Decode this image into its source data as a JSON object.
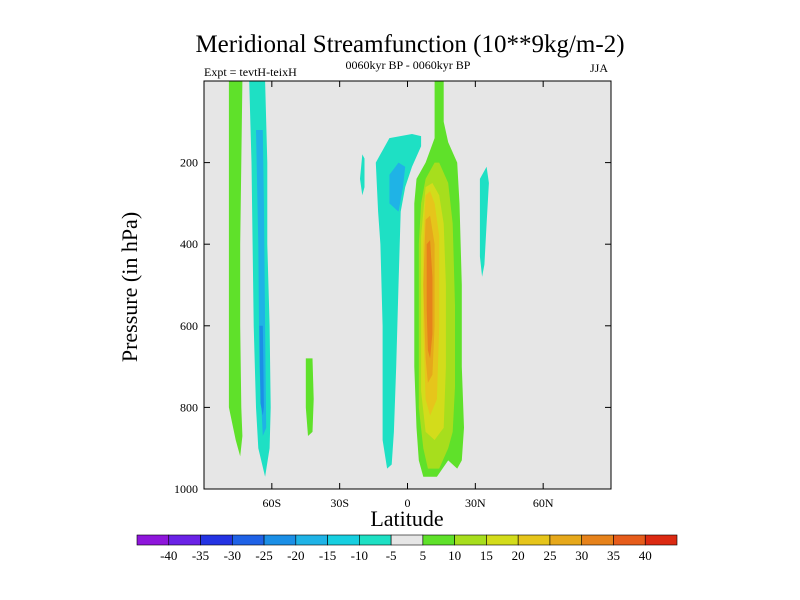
{
  "chart_data": {
    "type": "heatmap",
    "title": "Meridional Streamfunction (10**9kg/m-2)",
    "subtitle_left": "Expt = tevtH-teixH",
    "subtitle_center": "0060kyr BP - 0060kyr BP",
    "subtitle_right": "JJA",
    "xlabel": "Latitude",
    "ylabel": "Pressure (in hPa)",
    "xlim": [
      -90,
      90
    ],
    "ylim": [
      1000,
      0
    ],
    "x_ticks": [
      {
        "value": -60,
        "label": "60S"
      },
      {
        "value": -30,
        "label": "30S"
      },
      {
        "value": 0,
        "label": "0"
      },
      {
        "value": 30,
        "label": "30N"
      },
      {
        "value": 60,
        "label": "60N"
      }
    ],
    "y_ticks": [
      {
        "value": 200,
        "label": "200"
      },
      {
        "value": 400,
        "label": "400"
      },
      {
        "value": 600,
        "label": "600"
      },
      {
        "value": 800,
        "label": "800"
      },
      {
        "value": 1000,
        "label": "1000"
      }
    ],
    "background_color": "#e6e6e6",
    "colorbar": {
      "labels": [
        "-40",
        "-35",
        "-30",
        "-25",
        "-20",
        "-15",
        "-10",
        "-5",
        "5",
        "10",
        "15",
        "20",
        "25",
        "30",
        "35",
        "40"
      ],
      "colors": [
        "#8e16db",
        "#6a22e6",
        "#2433e3",
        "#1f62e6",
        "#1b8fe6",
        "#1fb3e6",
        "#17cfe0",
        "#1ee0c4",
        "#e6e6e6",
        "#5fe12a",
        "#a7de1d",
        "#d3dc1b",
        "#e6c51b",
        "#e6a81b",
        "#e6821b",
        "#e65c1b",
        "#dc2a12"
      ]
    },
    "regions": [
      {
        "name": "sh-positive-column",
        "value": 5,
        "color": "#5fe12a",
        "points": [
          [
            -79,
            0
          ],
          [
            -73,
            0
          ],
          [
            -73.5,
            200
          ],
          [
            -74,
            400
          ],
          [
            -74,
            600
          ],
          [
            -73.5,
            800
          ],
          [
            -73,
            870
          ],
          [
            -74,
            920
          ],
          [
            -76,
            880
          ],
          [
            -79,
            800
          ],
          [
            -79,
            600
          ],
          [
            -79,
            400
          ],
          [
            -79,
            200
          ]
        ]
      },
      {
        "name": "sh-negative-column",
        "value": -5,
        "color": "#1ee0c4",
        "points": [
          [
            -70,
            0
          ],
          [
            -63,
            0
          ],
          [
            -62,
            200
          ],
          [
            -62,
            400
          ],
          [
            -61,
            600
          ],
          [
            -60.5,
            800
          ],
          [
            -61,
            900
          ],
          [
            -63,
            970
          ],
          [
            -66,
            900
          ],
          [
            -67,
            800
          ],
          [
            -68,
            600
          ],
          [
            -68.5,
            400
          ],
          [
            -69,
            200
          ]
        ]
      },
      {
        "name": "sh-negative-core",
        "value": -10,
        "color": "#1fb3e6",
        "points": [
          [
            -67,
            120
          ],
          [
            -64,
            120
          ],
          [
            -63.5,
            300
          ],
          [
            -63,
            600
          ],
          [
            -62.5,
            850
          ],
          [
            -64,
            870
          ],
          [
            -65.5,
            700
          ],
          [
            -66,
            400
          ]
        ]
      },
      {
        "name": "sh-negative-deep",
        "value": -15,
        "color": "#1b8fe6",
        "points": [
          [
            -65.5,
            600
          ],
          [
            -64,
            600
          ],
          [
            -63.5,
            800
          ],
          [
            -64,
            820
          ],
          [
            -65,
            790
          ]
        ]
      },
      {
        "name": "sh-midlat-positive",
        "value": 5,
        "color": "#5fe12a",
        "points": [
          [
            -45,
            680
          ],
          [
            -42,
            680
          ],
          [
            -41.5,
            780
          ],
          [
            -42,
            860
          ],
          [
            -44,
            870
          ],
          [
            -45,
            800
          ]
        ]
      },
      {
        "name": "sh-subtropic-blob",
        "value": -5,
        "color": "#1ee0c4",
        "points": [
          [
            -20,
            180
          ],
          [
            -19,
            190
          ],
          [
            -19,
            260
          ],
          [
            -20,
            280
          ],
          [
            -21,
            240
          ]
        ]
      },
      {
        "name": "hadley-negative",
        "value": -5,
        "color": "#1ee0c4",
        "points": [
          [
            -14,
            200
          ],
          [
            -8,
            140
          ],
          [
            2,
            130
          ],
          [
            6,
            135
          ],
          [
            6,
            160
          ],
          [
            2,
            210
          ],
          [
            -1,
            260
          ],
          [
            -3,
            320
          ],
          [
            -4,
            500
          ],
          [
            -5,
            700
          ],
          [
            -6,
            860
          ],
          [
            -7,
            940
          ],
          [
            -9,
            950
          ],
          [
            -11,
            880
          ],
          [
            -11,
            600
          ],
          [
            -12,
            400
          ],
          [
            -13,
            320
          ]
        ]
      },
      {
        "name": "hadley-negative-core",
        "value": -10,
        "color": "#1fb3e6",
        "points": [
          [
            -8,
            230
          ],
          [
            -4,
            200
          ],
          [
            -1,
            210
          ],
          [
            -2,
            260
          ],
          [
            -4,
            320
          ],
          [
            -8,
            300
          ]
        ]
      },
      {
        "name": "hadley-positive-outer",
        "value": 5,
        "color": "#5fe12a",
        "points": [
          [
            12,
            0
          ],
          [
            16,
            0
          ],
          [
            16,
            100
          ],
          [
            18,
            150
          ],
          [
            22,
            200
          ],
          [
            23,
            300
          ],
          [
            24,
            500
          ],
          [
            24,
            700
          ],
          [
            25,
            850
          ],
          [
            24,
            930
          ],
          [
            22,
            950
          ],
          [
            18,
            930
          ],
          [
            13,
            970
          ],
          [
            7,
            970
          ],
          [
            5,
            930
          ],
          [
            4,
            850
          ],
          [
            3,
            700
          ],
          [
            3,
            500
          ],
          [
            3,
            300
          ],
          [
            4,
            240
          ],
          [
            8,
            200
          ],
          [
            12,
            140
          ]
        ]
      },
      {
        "name": "hadley-positive-10",
        "value": 10,
        "color": "#a7de1d",
        "points": [
          [
            12,
            200
          ],
          [
            14,
            200
          ],
          [
            18,
            250
          ],
          [
            20,
            350
          ],
          [
            21,
            550
          ],
          [
            21,
            750
          ],
          [
            20,
            860
          ],
          [
            18,
            900
          ],
          [
            14,
            950
          ],
          [
            9,
            950
          ],
          [
            7,
            900
          ],
          [
            5,
            800
          ],
          [
            5,
            600
          ],
          [
            5,
            400
          ],
          [
            6,
            300
          ],
          [
            8,
            240
          ]
        ]
      },
      {
        "name": "hadley-positive-15",
        "value": 15,
        "color": "#d3dc1b",
        "points": [
          [
            8,
            260
          ],
          [
            11,
            250
          ],
          [
            14,
            280
          ],
          [
            16,
            350
          ],
          [
            17,
            500
          ],
          [
            17,
            700
          ],
          [
            16,
            850
          ],
          [
            12,
            880
          ],
          [
            8,
            860
          ],
          [
            6,
            760
          ],
          [
            6,
            520
          ],
          [
            6,
            380
          ]
        ]
      },
      {
        "name": "hadley-positive-20",
        "value": 20,
        "color": "#e6c51b",
        "points": [
          [
            8,
            280
          ],
          [
            10,
            270
          ],
          [
            12,
            300
          ],
          [
            14,
            380
          ],
          [
            14,
            600
          ],
          [
            13,
            780
          ],
          [
            10,
            820
          ],
          [
            8,
            780
          ],
          [
            7,
            600
          ],
          [
            7,
            400
          ]
        ]
      },
      {
        "name": "hadley-positive-25",
        "value": 25,
        "color": "#e6a81b",
        "points": [
          [
            8,
            340
          ],
          [
            10,
            330
          ],
          [
            12,
            400
          ],
          [
            12,
            600
          ],
          [
            11,
            720
          ],
          [
            9,
            740
          ],
          [
            8,
            680
          ],
          [
            7,
            500
          ]
        ]
      },
      {
        "name": "hadley-positive-30",
        "value": 30,
        "color": "#e6821b",
        "points": [
          [
            8.5,
            400
          ],
          [
            10,
            390
          ],
          [
            11,
            480
          ],
          [
            11,
            620
          ],
          [
            10,
            680
          ],
          [
            9,
            660
          ],
          [
            8.5,
            560
          ]
        ]
      },
      {
        "name": "nh-negative-blob",
        "value": -5,
        "color": "#1ee0c4",
        "points": [
          [
            32,
            240
          ],
          [
            35,
            210
          ],
          [
            36,
            250
          ],
          [
            35,
            350
          ],
          [
            34,
            450
          ],
          [
            33,
            480
          ],
          [
            32,
            430
          ],
          [
            32,
            320
          ]
        ]
      }
    ]
  }
}
